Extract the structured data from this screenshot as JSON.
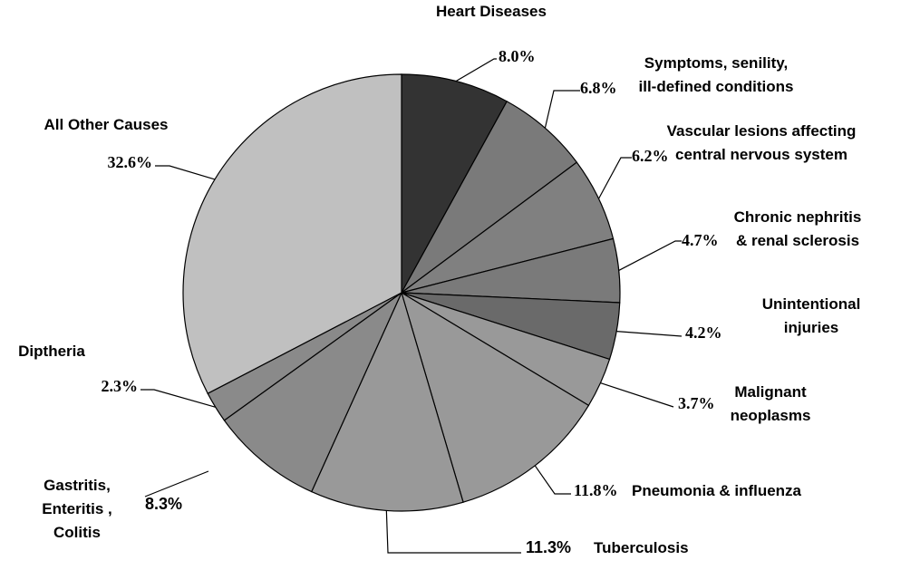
{
  "chart_data": {
    "type": "pie",
    "categories": [
      "Heart Diseases",
      "Symptoms, senility,\nill-defined conditions",
      "Vascular lesions affecting\ncentral nervous system",
      "Chronic nephritis\n& renal sclerosis",
      "Unintentional\ninjuries",
      "Malignant\nneoplasms",
      "Pneumonia & influenza",
      "Tuberculosis",
      "Gastritis,\nEnteritis ,\nColitis",
      "Diptheria",
      "All Other Causes"
    ],
    "values": [
      8.0,
      6.8,
      6.2,
      4.7,
      4.2,
      3.7,
      11.8,
      11.3,
      8.3,
      2.3,
      32.6
    ],
    "value_labels": [
      "8.0%",
      "6.8%",
      "6.2%",
      "4.7%",
      "4.2%",
      "3.7%",
      "11.8%",
      "11.3%",
      "8.3%",
      "2.3%",
      "32.6%"
    ],
    "colors": [
      "#333333",
      "#7a7a7a",
      "#808080",
      "#7a7a7a",
      "#6a6a6a",
      "#999999",
      "#999999",
      "#999999",
      "#8a8a8a",
      "#8a8a8a",
      "#c0c0c0"
    ]
  }
}
